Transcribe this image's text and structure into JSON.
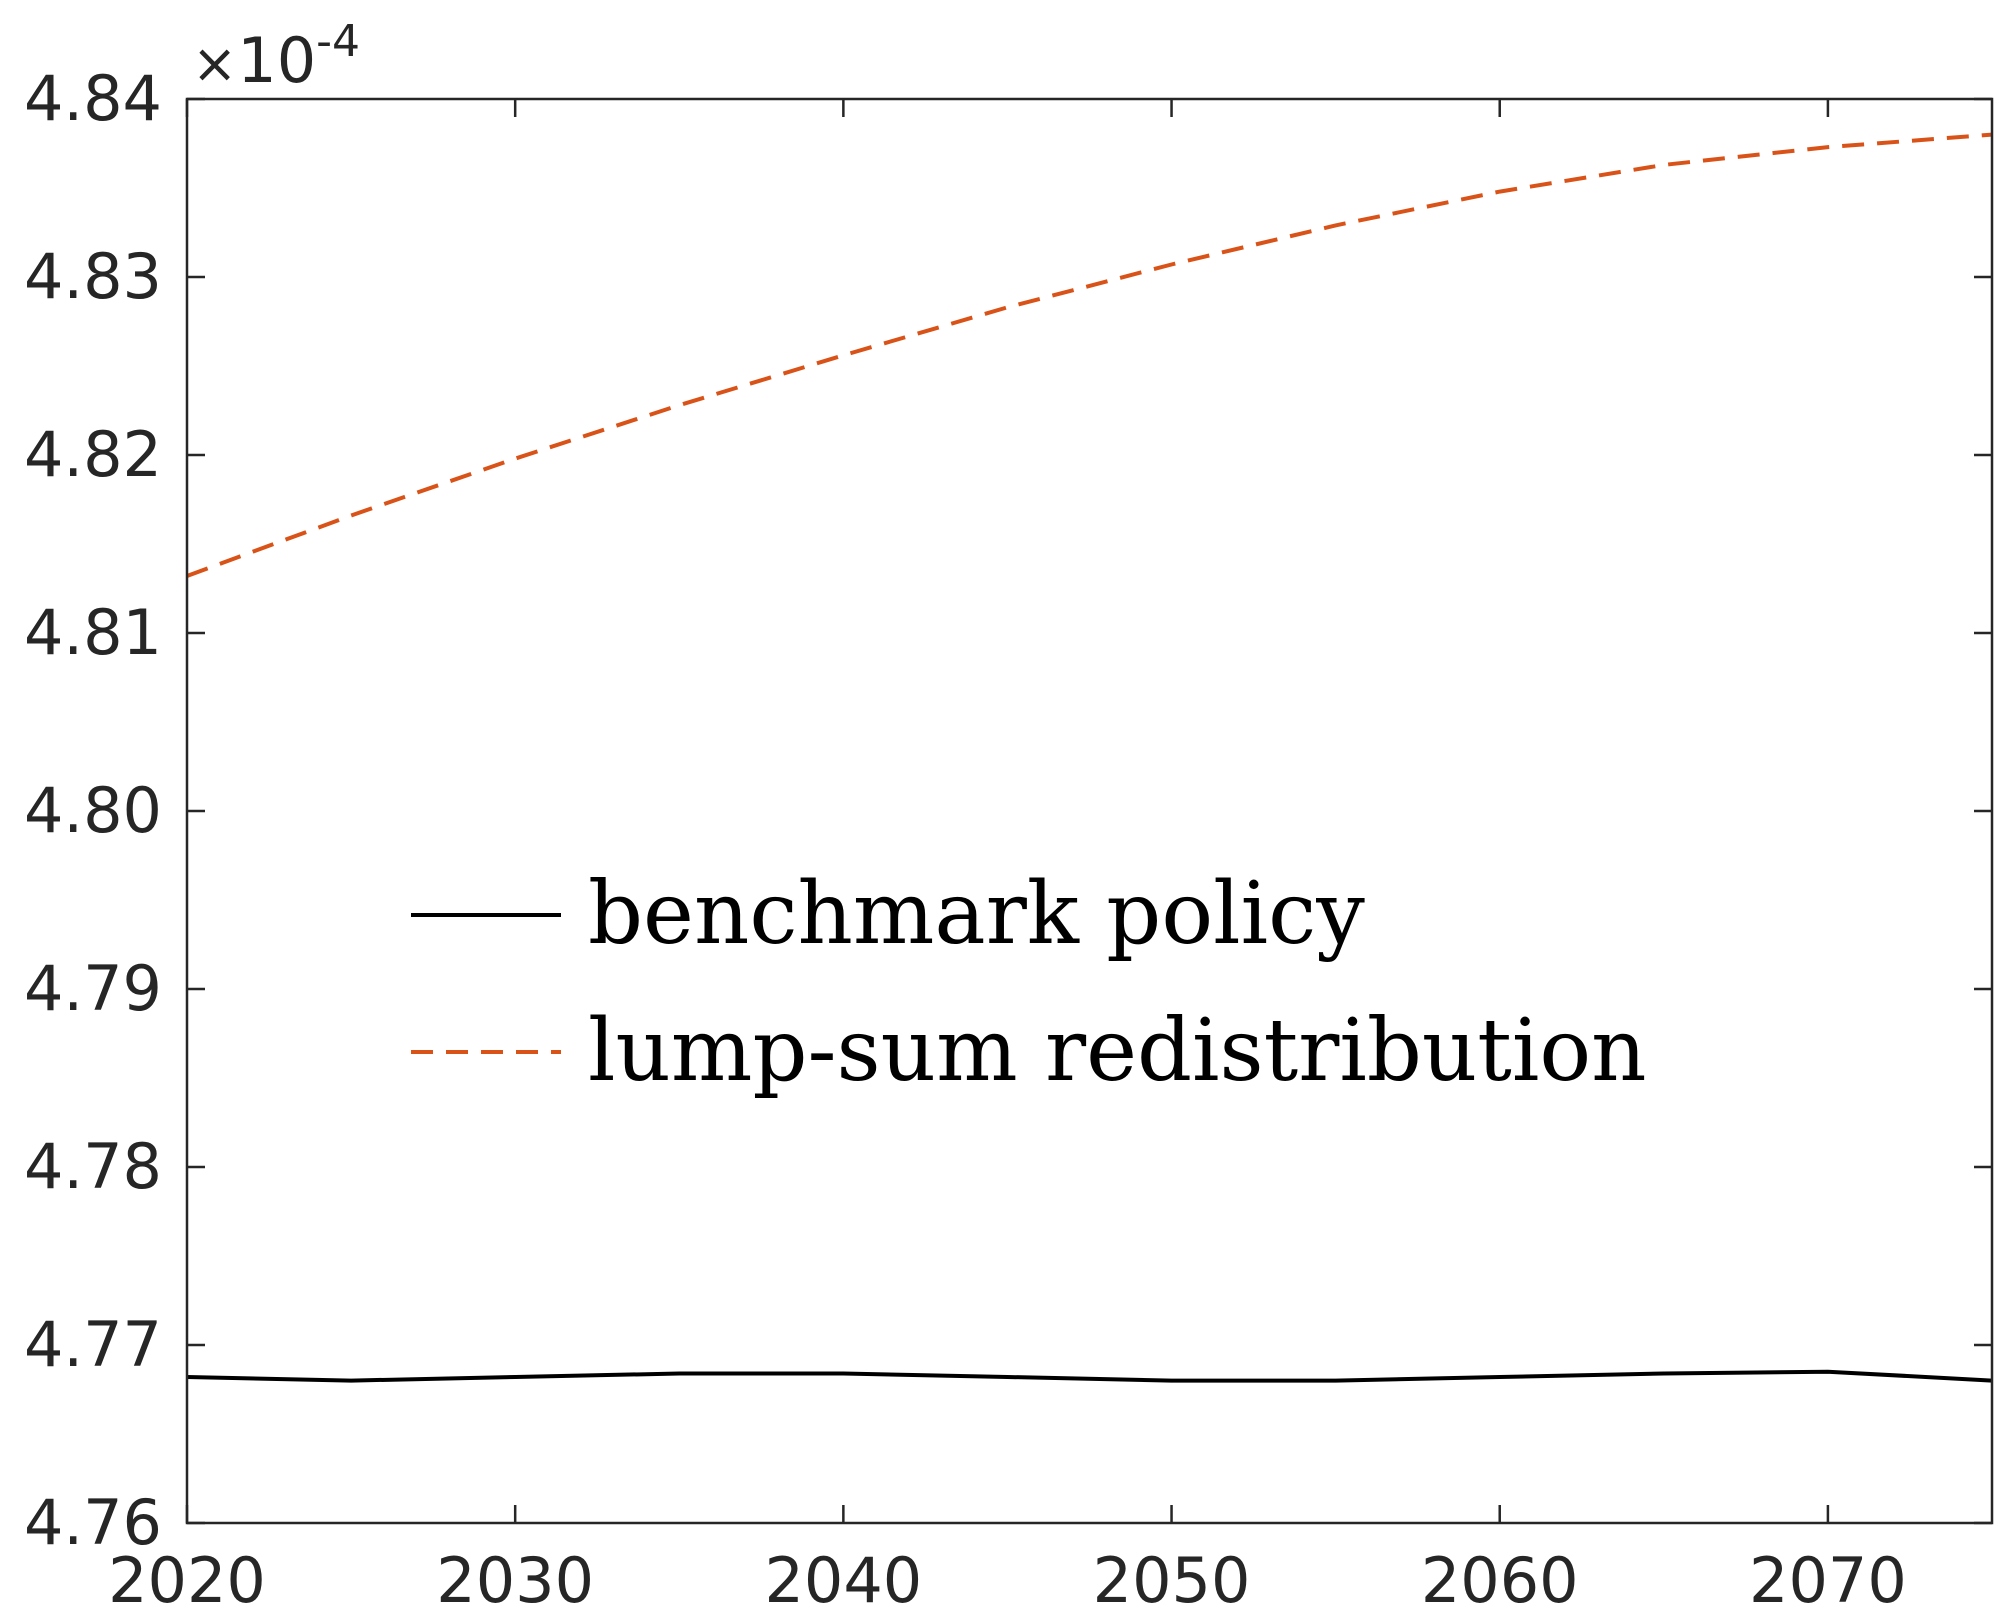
{
  "chart_data": {
    "type": "line",
    "title": "",
    "xlabel": "",
    "ylabel": "",
    "xlim": [
      2020,
      2075
    ],
    "ylim": [
      4.76,
      4.84
    ],
    "y_multiplier": {
      "symbol": "×",
      "base": "10",
      "exponent": "-4"
    },
    "x_ticks": [
      2020,
      2030,
      2040,
      2050,
      2060,
      2070
    ],
    "y_ticks": [
      4.76,
      4.77,
      4.78,
      4.79,
      4.8,
      4.81,
      4.82,
      4.83,
      4.84
    ],
    "y_tick_labels": [
      "4.76",
      "4.77",
      "4.78",
      "4.79",
      "4.80",
      "4.81",
      "4.82",
      "4.83",
      "4.84"
    ],
    "grid": false,
    "legend_position": "center",
    "series": [
      {
        "name": "benchmark policy",
        "color": "#000000",
        "style": "solid",
        "x": [
          2020,
          2025,
          2030,
          2035,
          2040,
          2045,
          2050,
          2055,
          2060,
          2065,
          2070,
          2075
        ],
        "y": [
          4.7682,
          4.768,
          4.7682,
          4.7684,
          4.7684,
          4.7682,
          4.768,
          4.768,
          4.7682,
          4.7684,
          4.7685,
          4.768
        ]
      },
      {
        "name": "lump-sum redistribution",
        "color": "#D95319",
        "style": "dashed",
        "x": [
          2020,
          2025,
          2030,
          2035,
          2040,
          2045,
          2050,
          2055,
          2060,
          2065,
          2070,
          2075
        ],
        "y": [
          4.8132,
          4.8166,
          4.8198,
          4.8228,
          4.8256,
          4.8283,
          4.8307,
          4.8329,
          4.8348,
          4.8363,
          4.8373,
          4.838
        ]
      }
    ]
  }
}
